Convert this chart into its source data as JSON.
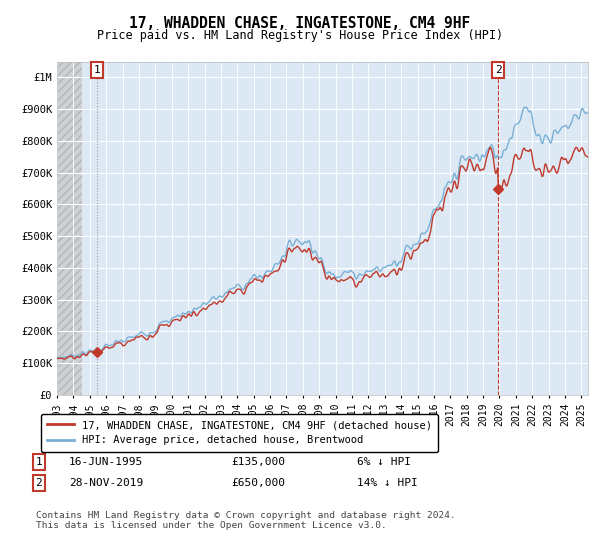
{
  "title": "17, WHADDEN CHASE, INGATESTONE, CM4 9HF",
  "subtitle": "Price paid vs. HM Land Registry's House Price Index (HPI)",
  "ylabel_ticks": [
    "£0",
    "£100K",
    "£200K",
    "£300K",
    "£400K",
    "£500K",
    "£600K",
    "£700K",
    "£800K",
    "£900K",
    "£1M"
  ],
  "ytick_values": [
    0,
    100000,
    200000,
    300000,
    400000,
    500000,
    600000,
    700000,
    800000,
    900000,
    1000000
  ],
  "ylim": [
    0,
    1050000
  ],
  "xlim_start": 1993.0,
  "xlim_end": 2025.4,
  "transaction1": {
    "date_num": 1995.46,
    "price": 135000,
    "label": "1",
    "date_str": "16-JUN-1995",
    "price_str": "£135,000",
    "note": "6% ↓ HPI"
  },
  "transaction2": {
    "date_num": 2019.92,
    "price": 650000,
    "label": "2",
    "date_str": "28-NOV-2019",
    "price_str": "£650,000",
    "note": "14% ↓ HPI"
  },
  "hpi_color": "#7aafd4",
  "price_color": "#c0392b",
  "vline1_color": "#aaaaaa",
  "vline2_color": "#c0392b",
  "background_chart": "#dce9f5",
  "grid_color": "#ffffff",
  "legend_label_red": "17, WHADDEN CHASE, INGATESTONE, CM4 9HF (detached house)",
  "legend_label_blue": "HPI: Average price, detached house, Brentwood",
  "footer": "Contains HM Land Registry data © Crown copyright and database right 2024.\nThis data is licensed under the Open Government Licence v3.0.",
  "xtick_years": [
    1993,
    1994,
    1995,
    1996,
    1997,
    1998,
    1999,
    2000,
    2001,
    2002,
    2003,
    2004,
    2005,
    2006,
    2007,
    2008,
    2009,
    2010,
    2011,
    2012,
    2013,
    2014,
    2015,
    2016,
    2017,
    2018,
    2019,
    2020,
    2021,
    2022,
    2023,
    2024,
    2025
  ],
  "hatch_end": 1994.5,
  "figsize": [
    6.0,
    5.6
  ],
  "dpi": 100
}
